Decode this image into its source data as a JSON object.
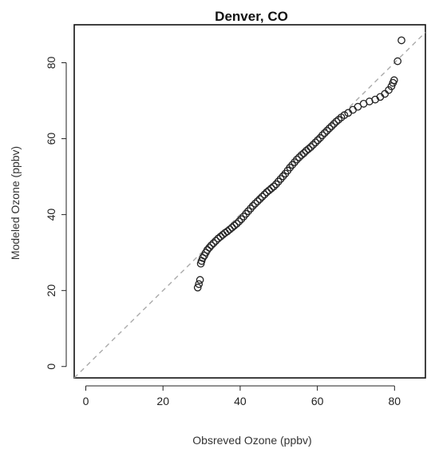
{
  "chart_data": {
    "type": "scatter",
    "title": "Denver, CO",
    "xlabel": "Obsreved Ozone (ppbv)",
    "ylabel": "Modeled Ozone (ppbv)",
    "xlim": [
      -3,
      88
    ],
    "ylim": [
      -3,
      90
    ],
    "xticks": [
      0,
      20,
      40,
      60,
      80
    ],
    "yticks": [
      0,
      20,
      40,
      60,
      80
    ],
    "grid": false,
    "reference_line": {
      "slope": 1,
      "intercept": 0,
      "style": "dashed",
      "color": "#aaaaaa"
    },
    "marker": {
      "shape": "open-circle",
      "color": "#222222"
    },
    "series": [
      {
        "points": [
          [
            29.0,
            20.8
          ],
          [
            29.3,
            21.7
          ],
          [
            29.6,
            22.8
          ],
          [
            29.8,
            27.1
          ],
          [
            30.0,
            27.8
          ],
          [
            30.3,
            28.6
          ],
          [
            30.7,
            29.2
          ],
          [
            31.1,
            30.0
          ],
          [
            31.5,
            30.7
          ],
          [
            32.0,
            31.3
          ],
          [
            32.5,
            31.9
          ],
          [
            33.1,
            32.5
          ],
          [
            33.7,
            33.1
          ],
          [
            34.3,
            33.7
          ],
          [
            34.9,
            34.2
          ],
          [
            35.5,
            34.7
          ],
          [
            36.1,
            35.2
          ],
          [
            36.7,
            35.6
          ],
          [
            37.3,
            36.1
          ],
          [
            37.9,
            36.6
          ],
          [
            38.5,
            37.1
          ],
          [
            39.1,
            37.6
          ],
          [
            39.7,
            38.2
          ],
          [
            40.3,
            38.8
          ],
          [
            40.9,
            39.5
          ],
          [
            41.5,
            40.2
          ],
          [
            42.1,
            40.9
          ],
          [
            42.7,
            41.6
          ],
          [
            43.3,
            42.3
          ],
          [
            43.9,
            42.9
          ],
          [
            44.5,
            43.5
          ],
          [
            45.1,
            44.1
          ],
          [
            45.7,
            44.7
          ],
          [
            46.3,
            45.3
          ],
          [
            46.9,
            45.9
          ],
          [
            47.5,
            46.4
          ],
          [
            48.1,
            46.9
          ],
          [
            48.7,
            47.4
          ],
          [
            49.3,
            48.0
          ],
          [
            49.9,
            48.7
          ],
          [
            50.5,
            49.4
          ],
          [
            51.1,
            50.1
          ],
          [
            51.7,
            50.8
          ],
          [
            52.3,
            51.6
          ],
          [
            52.9,
            52.4
          ],
          [
            53.5,
            53.1
          ],
          [
            54.1,
            53.8
          ],
          [
            54.7,
            54.5
          ],
          [
            55.3,
            55.1
          ],
          [
            55.9,
            55.7
          ],
          [
            56.5,
            56.2
          ],
          [
            57.1,
            56.8
          ],
          [
            57.7,
            57.3
          ],
          [
            58.3,
            57.8
          ],
          [
            58.9,
            58.4
          ],
          [
            59.5,
            59.0
          ],
          [
            60.1,
            59.6
          ],
          [
            60.7,
            60.2
          ],
          [
            61.3,
            60.9
          ],
          [
            61.9,
            61.5
          ],
          [
            62.5,
            62.1
          ],
          [
            63.1,
            62.7
          ],
          [
            63.7,
            63.3
          ],
          [
            64.3,
            63.9
          ],
          [
            64.9,
            64.5
          ],
          [
            65.5,
            65.0
          ],
          [
            66.2,
            65.6
          ],
          [
            67.0,
            66.2
          ],
          [
            68.0,
            66.8
          ],
          [
            69.2,
            67.6
          ],
          [
            70.5,
            68.4
          ],
          [
            72.0,
            69.2
          ],
          [
            73.5,
            69.8
          ],
          [
            75.0,
            70.3
          ],
          [
            76.3,
            71.0
          ],
          [
            77.5,
            71.8
          ],
          [
            78.5,
            72.8
          ],
          [
            79.2,
            73.8
          ],
          [
            79.6,
            74.7
          ],
          [
            79.9,
            75.4
          ],
          [
            80.8,
            80.4
          ],
          [
            81.8,
            85.9
          ]
        ]
      }
    ]
  }
}
